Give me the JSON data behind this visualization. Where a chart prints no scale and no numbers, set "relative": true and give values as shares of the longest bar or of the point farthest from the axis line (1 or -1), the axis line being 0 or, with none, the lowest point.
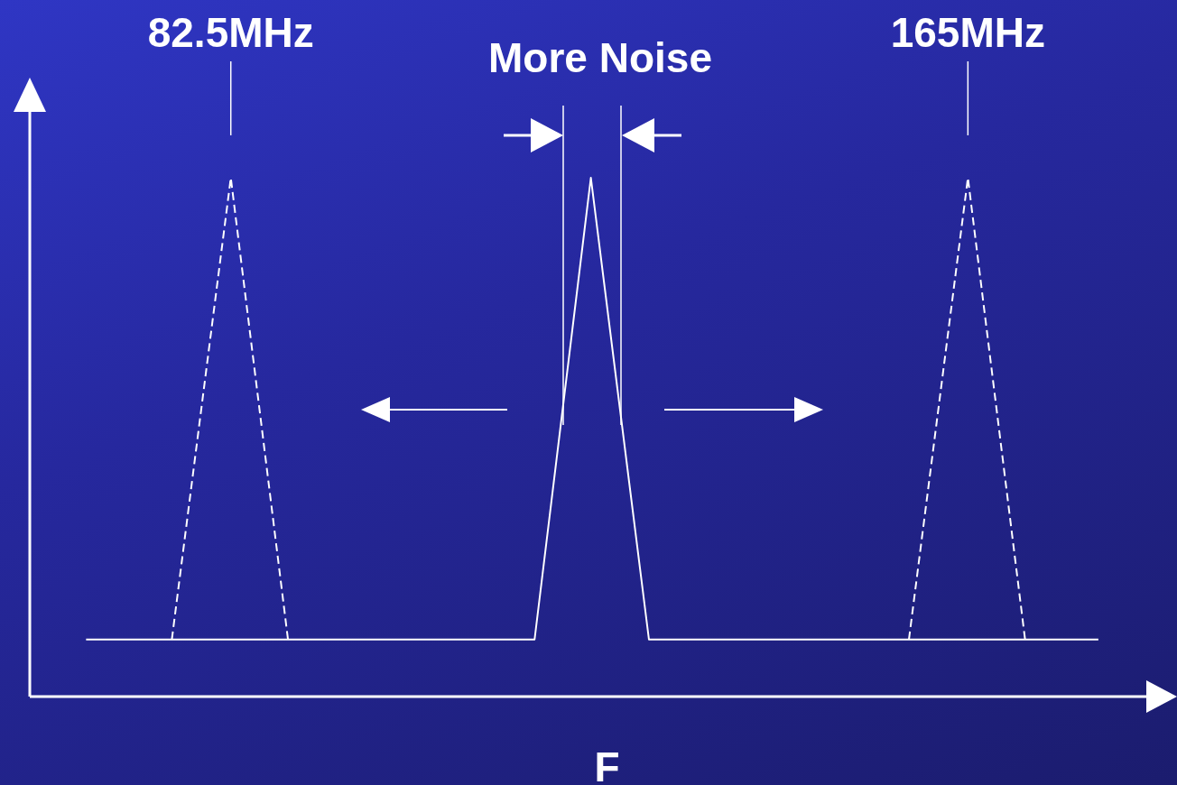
{
  "chart_data": {
    "type": "line",
    "relative": true,
    "xlabel": "F",
    "xlim": [
      60,
      188
    ],
    "xticks": [
      {
        "value": 82.5,
        "label": "82.5MHz"
      },
      {
        "value": 165,
        "label": "165MHz"
      }
    ],
    "legend": false,
    "marker": "none",
    "series": [
      {
        "color": "#ffffff",
        "line_style": "solid",
        "x": [
          66.3,
          116.5,
          122.8,
          129.3,
          179.6
        ],
        "values": [
          0.11,
          0.11,
          1,
          0.11,
          0.11
        ]
      },
      {
        "color": "#ffffff",
        "line_style": "dashed",
        "x": [
          75.9,
          82.5,
          88.9
        ],
        "values": [
          0.11,
          1,
          0.11
        ]
      },
      {
        "color": "#ffffff",
        "line_style": "dashed",
        "x": [
          158.4,
          165,
          171.4
        ],
        "values": [
          0.11,
          1,
          0.11
        ]
      }
    ],
    "annotations": [
      "More Noise"
    ]
  }
}
